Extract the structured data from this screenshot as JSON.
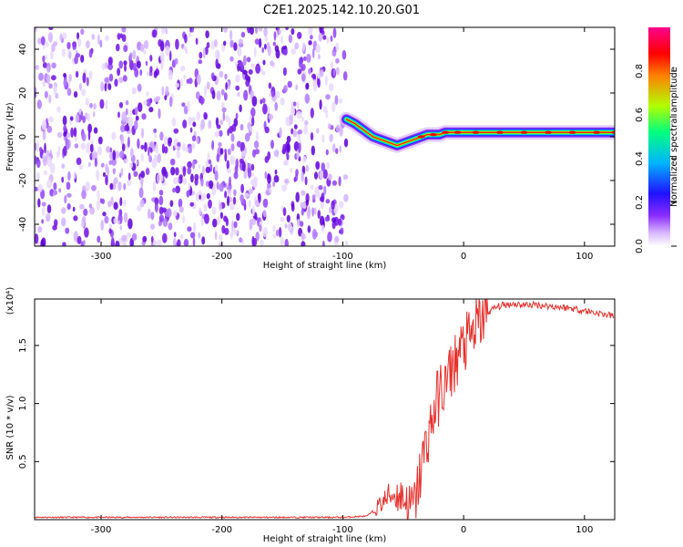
{
  "title": "C2E1.2025.142.10.20.G01",
  "colors": {
    "snr_line": "#e8302c",
    "spectrum_scatter": "#7b1fe0",
    "ridge": "#ff0000"
  },
  "chart_data": [
    {
      "type": "heatmap",
      "name": "spectrogram",
      "xlabel": "Height of straight line (km)",
      "ylabel": "Frequency (Hz)",
      "xlim": [
        -355,
        125
      ],
      "ylim": [
        -50,
        50
      ],
      "xticks": [
        -300,
        -200,
        -100,
        0,
        100
      ],
      "yticks": [
        -40,
        -20,
        0,
        20,
        40
      ],
      "colorbar": {
        "label": "Normalized spectral amplitude",
        "range": [
          0.0,
          1.0
        ],
        "ticks": [
          "0.0",
          "0.2",
          "0.4",
          "0.6",
          "0.8"
        ],
        "tick_values": [
          0.0,
          0.2,
          0.4,
          0.6,
          0.8
        ],
        "colormap": [
          "#ffffff",
          "#c38bff",
          "#7a10ff",
          "#1818ff",
          "#00c8ff",
          "#00ff60",
          "#d0ff00",
          "#ff8000",
          "#ff0000",
          "#ff0080"
        ]
      },
      "noise_region_x": [
        -355,
        -97
      ],
      "signal_ridge": {
        "x": [
          -97,
          -90,
          -85,
          -80,
          -75,
          -70,
          -65,
          -60,
          -55,
          -50,
          -45,
          -40,
          -35,
          -30,
          -25,
          -20,
          -15,
          -10,
          -5,
          0,
          10,
          20,
          30,
          40,
          50,
          60,
          70,
          80,
          90,
          100,
          110,
          120,
          125
        ],
        "y": [
          8,
          6,
          4,
          2,
          0,
          -1,
          -2,
          -3,
          -4,
          -3,
          -2,
          -1,
          0,
          1,
          1,
          1,
          2,
          2,
          2,
          2,
          2,
          2,
          2,
          2,
          2,
          2,
          2,
          2,
          2,
          2,
          2,
          2,
          2
        ]
      }
    },
    {
      "type": "line",
      "name": "snr",
      "xlabel": "Height of straight line (km)",
      "ylabel": "SNR (10 * v/v)",
      "y_multiplier": "(x10⁴)",
      "xlim": [
        -355,
        125
      ],
      "ylim": [
        0,
        1.9
      ],
      "xticks": [
        -300,
        -200,
        -100,
        0,
        100
      ],
      "yticks": [
        "0.5",
        "1.0",
        "1.5"
      ],
      "ytick_values": [
        0.5,
        1.0,
        1.5
      ],
      "series": [
        {
          "x": [
            -355,
            -300,
            -250,
            -200,
            -150,
            -100,
            -80,
            -70,
            -60,
            -50,
            -45,
            -40,
            -35,
            -30,
            -25,
            -20,
            -15,
            -10,
            -5,
            0,
            5,
            10,
            15,
            20,
            25,
            30,
            40,
            50,
            60,
            70,
            80,
            90,
            100,
            110,
            120,
            125
          ],
          "y": [
            0.02,
            0.02,
            0.02,
            0.02,
            0.02,
            0.02,
            0.03,
            0.12,
            0.22,
            0.2,
            0.1,
            0.15,
            0.45,
            0.7,
            0.9,
            1.1,
            1.15,
            1.3,
            1.4,
            1.5,
            1.55,
            1.65,
            1.72,
            1.78,
            1.82,
            1.84,
            1.86,
            1.85,
            1.85,
            1.84,
            1.83,
            1.82,
            1.8,
            1.78,
            1.76,
            1.75
          ]
        }
      ]
    }
  ]
}
